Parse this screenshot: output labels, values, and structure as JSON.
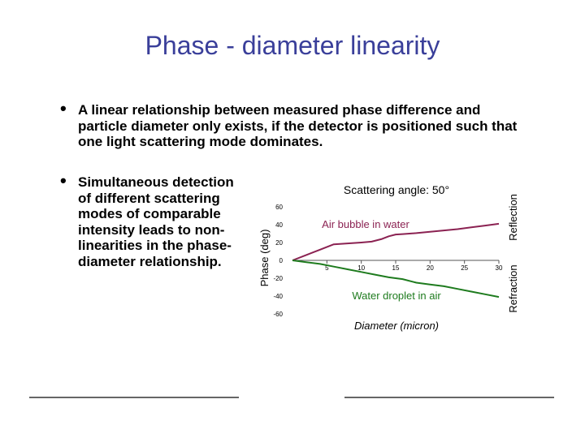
{
  "slide": {
    "title": "Phase - diameter linearity",
    "bullets": [
      "A linear relationship between measured phase difference and particle diameter only exists, if the detector is positioned such that one light scattering mode dominates.",
      "Simultaneous detection of different scattering modes of comparable intensity leads to non-linearities in the phase-diameter relationship."
    ],
    "bullet_symbol": "•"
  },
  "chart_data": {
    "type": "line",
    "title": "Scattering angle: 50°",
    "xlabel": "Diameter (micron)",
    "ylabel": "Phase (deg)",
    "xlim": [
      0,
      30
    ],
    "ylim": [
      -60,
      60
    ],
    "x_ticks": [
      "5",
      "10",
      "15",
      "20",
      "25",
      "30"
    ],
    "y_ticks": [
      "60",
      "40",
      "20",
      "0",
      "-20",
      "-40",
      "-60"
    ],
    "right_labels": [
      "Reflection",
      "Refraction"
    ],
    "grid": false,
    "series": [
      {
        "name": "Air bubble in water",
        "color": "#8b2252",
        "points": [
          [
            0,
            0
          ],
          [
            2,
            6
          ],
          [
            4,
            12
          ],
          [
            6,
            18
          ],
          [
            8,
            19
          ],
          [
            10,
            20
          ],
          [
            11.5,
            21
          ],
          [
            13,
            24
          ],
          [
            14,
            27
          ],
          [
            15,
            29
          ],
          [
            16,
            29.5
          ],
          [
            18,
            30.5
          ],
          [
            20,
            32
          ],
          [
            22,
            33.5
          ],
          [
            24,
            35
          ],
          [
            26,
            37
          ],
          [
            28,
            39
          ],
          [
            30,
            41
          ]
        ]
      },
      {
        "name": "Water droplet in air",
        "color": "#1e7b1e",
        "points": [
          [
            0,
            0
          ],
          [
            2,
            -2
          ],
          [
            4,
            -4
          ],
          [
            6,
            -7
          ],
          [
            8,
            -10
          ],
          [
            10,
            -13
          ],
          [
            12,
            -16
          ],
          [
            14,
            -19
          ],
          [
            16,
            -21
          ],
          [
            18,
            -25
          ],
          [
            20,
            -27
          ],
          [
            22,
            -29
          ],
          [
            24,
            -32
          ],
          [
            26,
            -35
          ],
          [
            28,
            -38
          ],
          [
            30,
            -41
          ]
        ]
      }
    ]
  }
}
